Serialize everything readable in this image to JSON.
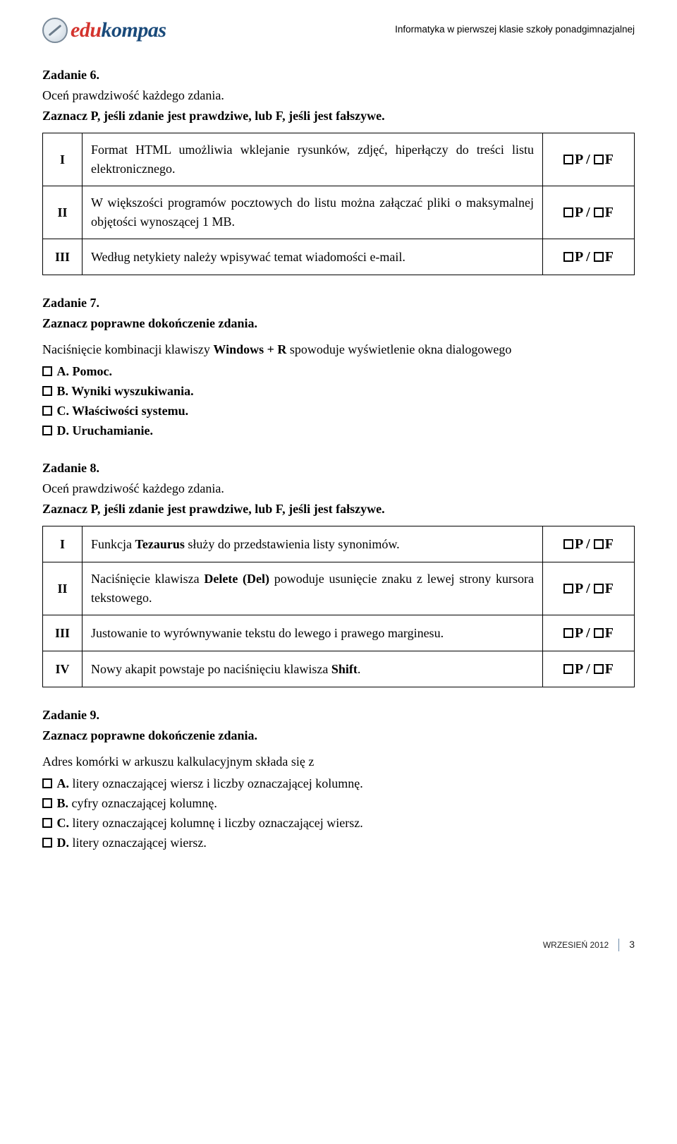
{
  "header": {
    "logo_edu": "edu",
    "logo_kompas": "kompas",
    "subtitle": "Informatyka w pierwszej klasie szkoły ponadgimnazjalnej"
  },
  "pf_label_P": "P",
  "pf_label_F": "F",
  "pf_sep": " / ",
  "task6": {
    "title": "Zadanie 6.",
    "line1": "Oceń prawdziwość każdego zdania.",
    "line2": "Zaznacz P, jeśli zdanie jest prawdziwe, lub F, jeśli jest fałszywe.",
    "rows": [
      {
        "rn": "I",
        "text": "Format HTML umożliwia wklejanie rysunków, zdjęć, hiperłączy do treści listu elektronicznego."
      },
      {
        "rn": "II",
        "text": "W większości programów pocztowych do listu można załączać pliki o maksymalnej objętości wynoszącej 1 MB."
      },
      {
        "rn": "III",
        "text": "Według netykiety należy wpisywać temat wiadomości e-mail."
      }
    ]
  },
  "task7": {
    "title": "Zadanie 7.",
    "line1": "Zaznacz poprawne dokończenie zdania.",
    "intro_pre": "Naciśnięcie kombinacji klawiszy ",
    "intro_bold": "Windows + R",
    "intro_post": " spowoduje wyświetlenie okna dialogowego",
    "options": [
      {
        "lbl": "A.",
        "text": " Pomoc."
      },
      {
        "lbl": "B.",
        "text": " Wyniki wyszukiwania."
      },
      {
        "lbl": "C.",
        "text": " Właściwości systemu."
      },
      {
        "lbl": "D.",
        "text": " Uruchamianie."
      }
    ]
  },
  "task8": {
    "title": "Zadanie 8.",
    "line1": "Oceń prawdziwość każdego zdania.",
    "line2": "Zaznacz P, jeśli zdanie jest prawdziwe, lub F, jeśli jest fałszywe.",
    "rows": [
      {
        "rn": "I",
        "pre": "Funkcja ",
        "bold": "Tezaurus",
        "post": " służy do przedstawienia listy synonimów."
      },
      {
        "rn": "II",
        "pre": "Naciśnięcie klawisza ",
        "bold": "Delete (Del)",
        "post": " powoduje usunięcie znaku z lewej strony kursora tekstowego."
      },
      {
        "rn": "III",
        "pre": "",
        "bold": "",
        "post": "Justowanie to wyrównywanie tekstu do lewego i prawego marginesu."
      },
      {
        "rn": "IV",
        "pre": "Nowy akapit powstaje po naciśnięciu klawisza ",
        "bold": "Shift",
        "post": "."
      }
    ]
  },
  "task9": {
    "title": "Zadanie 9.",
    "line1": "Zaznacz poprawne dokończenie zdania.",
    "intro": "Adres komórki w arkuszu kalkulacyjnym składa się z",
    "options": [
      {
        "lbl": "A.",
        "text": " litery oznaczającej wiersz i liczby oznaczającej kolumnę."
      },
      {
        "lbl": "B.",
        "text": " cyfry oznaczającej kolumnę."
      },
      {
        "lbl": "C.",
        "text": " litery oznaczającej kolumnę i liczby oznaczającej wiersz."
      },
      {
        "lbl": "D.",
        "text": " litery oznaczającej wiersz."
      }
    ]
  },
  "footer": {
    "date": "WRZESIEŃ 2012",
    "page": "3"
  },
  "colors": {
    "logo_red": "#d4342e",
    "logo_blue": "#1a4a7a",
    "text": "#000000",
    "bg": "#ffffff",
    "border": "#000000",
    "footer_divider": "#6a8aa8"
  }
}
